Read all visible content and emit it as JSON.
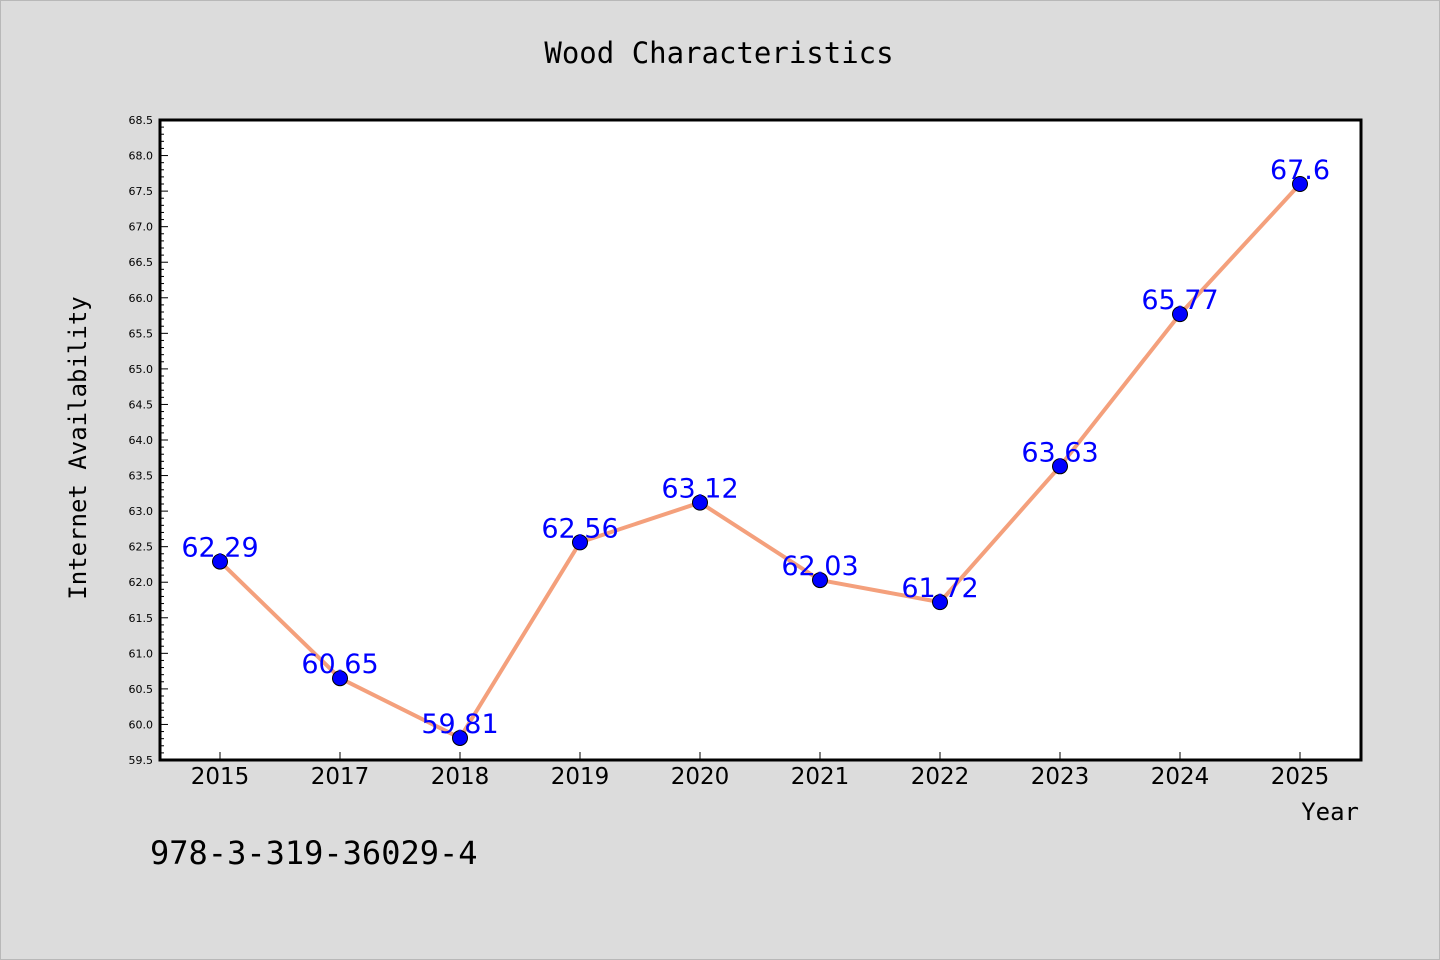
{
  "chart_data": {
    "type": "line",
    "title": "Wood Characteristics",
    "xlabel": "Year",
    "ylabel": "Internet Availability",
    "categories": [
      "2015",
      "2017",
      "2018",
      "2019",
      "2020",
      "2021",
      "2022",
      "2023",
      "2024",
      "2025"
    ],
    "series": [
      {
        "values": [
          62.29,
          60.65,
          59.81,
          62.56,
          63.12,
          62.03,
          61.72,
          63.63,
          65.77,
          67.6
        ],
        "labels": [
          "62.29",
          "60.65",
          "59.81",
          "62.56",
          "63.12",
          "62.03",
          "61.72",
          "63.63",
          "65.77",
          "67.6"
        ],
        "line_color": "#f4a07c",
        "marker_color": "#0000ff"
      }
    ],
    "ylim": [
      59.5,
      68.5
    ],
    "yticks": [
      "59.5",
      "60.0",
      "60.5",
      "61.0",
      "61.5",
      "62.0",
      "62.5",
      "63.0",
      "63.5",
      "64.0",
      "64.5",
      "65.0",
      "65.5",
      "66.0",
      "66.5",
      "67.0",
      "67.5",
      "68.0",
      "68.5"
    ],
    "grid": false,
    "label_color": "#0000ff"
  },
  "footer_text": "978-3-319-36029-4"
}
